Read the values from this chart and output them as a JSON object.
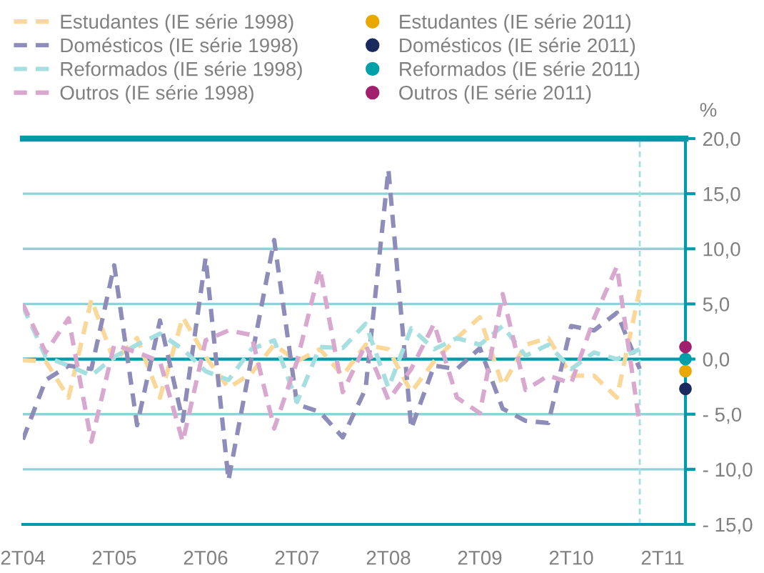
{
  "chart_data": {
    "type": "line",
    "categories": [
      "2T04",
      null,
      null,
      null,
      "2T05",
      null,
      null,
      null,
      "2T06",
      null,
      null,
      null,
      "2T07",
      null,
      null,
      null,
      "2T08",
      null,
      null,
      null,
      "2T09",
      null,
      null,
      null,
      "2T10",
      null,
      null,
      null,
      "2T11",
      null
    ],
    "series": [
      {
        "name": "Estudantes (IE série 1998)",
        "color": "#f9d89a",
        "line_style": "dashed",
        "values": [
          -0.1,
          -0.2,
          -3.5,
          5.4,
          -0.2,
          1.9,
          -3.5,
          3.8,
          0.2,
          -2.6,
          -1.3,
          1.3,
          -0.2,
          0.9,
          -1.5,
          1.3,
          0.9,
          -3.0,
          -0.2,
          1.9,
          3.8,
          -2.4,
          1.3,
          1.9,
          -1.5,
          -1.5,
          -3.5,
          6.3,
          null,
          null
        ]
      },
      {
        "name": "Domésticos (IE série 1998)",
        "color": "#8e8cb8",
        "line_style": "dashed",
        "values": [
          -7.3,
          -1.9,
          -0.6,
          -0.9,
          8.5,
          -6.0,
          3.5,
          -5.6,
          9.2,
          -11.0,
          0.0,
          10.8,
          -4.1,
          -4.8,
          -7.1,
          -2.7,
          17.2,
          -6.3,
          -0.6,
          -0.9,
          1.0,
          -4.5,
          -5.6,
          -5.8,
          3.0,
          2.6,
          4.2,
          -0.9,
          null,
          null
        ]
      },
      {
        "name": "Reformados (IE série 1998)",
        "color": "#a6dfe0",
        "line_style": "dashed",
        "values": [
          4.8,
          0.2,
          -0.6,
          -1.5,
          0.2,
          1.3,
          2.3,
          0.9,
          -1.1,
          -1.9,
          0.9,
          1.7,
          -3.9,
          1.1,
          1.0,
          3.2,
          -2.6,
          2.8,
          0.9,
          1.9,
          1.3,
          3.0,
          0.3,
          1.3,
          -0.9,
          0.6,
          0.0,
          0.9,
          null,
          null
        ]
      },
      {
        "name": "Outros (IE série 1998)",
        "color": "#d9a8cf",
        "line_style": "dashed",
        "values": [
          5.0,
          0.6,
          3.7,
          -7.5,
          1.3,
          0.6,
          -0.2,
          -7.5,
          1.7,
          2.6,
          2.2,
          -6.3,
          -0.2,
          8.2,
          -3.0,
          1.3,
          -3.7,
          -0.9,
          3.2,
          -3.5,
          -4.9,
          5.9,
          -2.8,
          -1.5,
          -2.2,
          3.7,
          8.4,
          -6.0,
          null,
          null
        ]
      },
      {
        "name": "Estudantes (IE série 2011)",
        "type": "scatter",
        "marker": "circle",
        "color": "#e8a800",
        "values": [
          null,
          null,
          null,
          null,
          null,
          null,
          null,
          null,
          null,
          null,
          null,
          null,
          null,
          null,
          null,
          null,
          null,
          null,
          null,
          null,
          null,
          null,
          null,
          null,
          null,
          null,
          null,
          null,
          null,
          -1.1
        ]
      },
      {
        "name": "Domésticos (IE série 2011)",
        "type": "scatter",
        "marker": "circle",
        "color": "#1a2a5e",
        "values": [
          null,
          null,
          null,
          null,
          null,
          null,
          null,
          null,
          null,
          null,
          null,
          null,
          null,
          null,
          null,
          null,
          null,
          null,
          null,
          null,
          null,
          null,
          null,
          null,
          null,
          null,
          null,
          null,
          null,
          -2.7
        ]
      },
      {
        "name": "Reformados (IE série 2011)",
        "type": "scatter",
        "marker": "circle",
        "color": "#00a0a8",
        "values": [
          null,
          null,
          null,
          null,
          null,
          null,
          null,
          null,
          null,
          null,
          null,
          null,
          null,
          null,
          null,
          null,
          null,
          null,
          null,
          null,
          null,
          null,
          null,
          null,
          null,
          null,
          null,
          null,
          null,
          0.0
        ]
      },
      {
        "name": "Outros (IE série 2011)",
        "type": "scatter",
        "marker": "circle",
        "color": "#a0206e",
        "values": [
          null,
          null,
          null,
          null,
          null,
          null,
          null,
          null,
          null,
          null,
          null,
          null,
          null,
          null,
          null,
          null,
          null,
          null,
          null,
          null,
          null,
          null,
          null,
          null,
          null,
          null,
          null,
          null,
          null,
          1.1
        ]
      }
    ],
    "ylabel": "%",
    "ylim": [
      -15,
      20
    ],
    "yticks": [
      {
        "value": -15,
        "label": "- 15,0"
      },
      {
        "value": -10,
        "label": "- 10,0"
      },
      {
        "value": -5,
        "label": "- 5,0"
      },
      {
        "value": 0,
        "label": "0,0"
      },
      {
        "value": 5,
        "label": "5,0"
      },
      {
        "value": 10,
        "label": "10,0"
      },
      {
        "value": 15,
        "label": "15,0"
      },
      {
        "value": 20,
        "label": "20,0"
      }
    ],
    "grid": "y",
    "ref_lines": [
      {
        "axis": "y",
        "value": 0,
        "color": "#009aa8",
        "line_style": "solid"
      }
    ],
    "legend": "top left",
    "marker": "none"
  }
}
